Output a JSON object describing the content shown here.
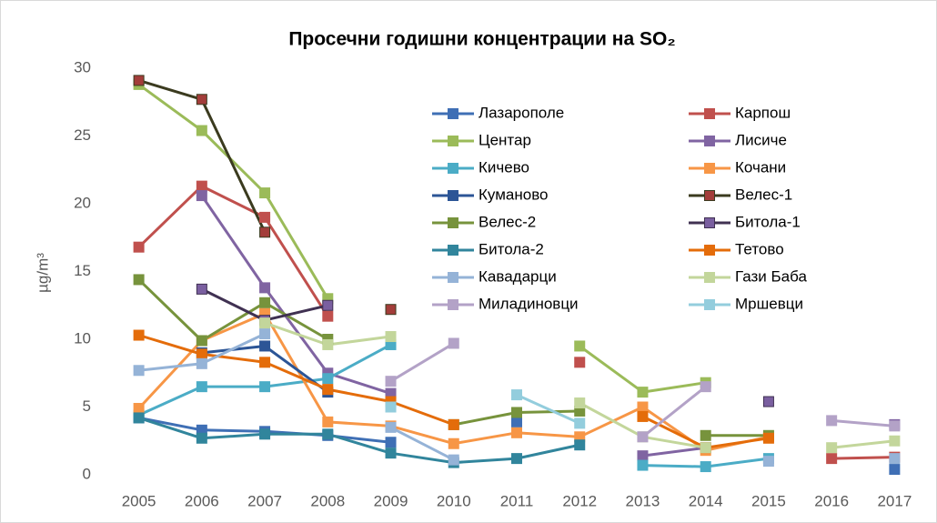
{
  "chart_data": {
    "type": "line",
    "title": "Просечни годишни концентрации на SO₂",
    "y_label": "µg/m³",
    "categories": [
      "2005",
      "2006",
      "2007",
      "2008",
      "2009",
      "2010",
      "2011",
      "2012",
      "2013",
      "2014",
      "2015",
      "2016",
      "2017"
    ],
    "ylim": [
      0,
      30
    ],
    "yticks": [
      0,
      5,
      10,
      15,
      20,
      25,
      30
    ],
    "grid": false,
    "legend": "upper right",
    "series": [
      {
        "name": "Лазарополе",
        "color": "#3f6fb5",
        "values": [
          4.2,
          3.3,
          3.2,
          2.9,
          2.4,
          null,
          3.9,
          null,
          null,
          null,
          null,
          null,
          0.4
        ]
      },
      {
        "name": "Карпош",
        "color": "#c0504d",
        "values": [
          16.8,
          21.3,
          19.0,
          11.7,
          null,
          null,
          null,
          8.3,
          null,
          null,
          null,
          1.2,
          1.3
        ]
      },
      {
        "name": "Центар",
        "color": "#9bbb59",
        "values": [
          28.8,
          25.4,
          20.8,
          13.0,
          null,
          null,
          null,
          9.5,
          6.1,
          6.8,
          null,
          null,
          null
        ]
      },
      {
        "name": "Лисиче",
        "color": "#8064a2",
        "values": [
          null,
          20.6,
          13.8,
          7.5,
          6.0,
          null,
          null,
          null,
          1.4,
          2.0,
          null,
          null,
          3.7
        ]
      },
      {
        "name": "Кичево",
        "color": "#4bacc6",
        "values": [
          4.4,
          6.5,
          6.5,
          7.1,
          9.6,
          null,
          null,
          null,
          0.7,
          0.6,
          1.2,
          null,
          null
        ]
      },
      {
        "name": "Кочани",
        "color": "#f79646",
        "values": [
          4.9,
          9.9,
          11.9,
          3.9,
          3.6,
          2.3,
          3.1,
          2.8,
          5.0,
          1.8,
          2.8,
          null,
          null
        ]
      },
      {
        "name": "Куманово",
        "color": "#2c5596",
        "values": [
          null,
          9.0,
          9.5,
          6.1,
          null,
          null,
          null,
          null,
          null,
          null,
          null,
          null,
          null
        ]
      },
      {
        "name": "Велес-1",
        "color": "#3b3b1f",
        "marker": "#a33d3a",
        "values": [
          29.1,
          27.7,
          17.9,
          null,
          12.2,
          null,
          null,
          null,
          null,
          null,
          null,
          null,
          null
        ]
      },
      {
        "name": "Велес-2",
        "color": "#77933c",
        "values": [
          14.4,
          9.9,
          12.7,
          10.0,
          null,
          3.7,
          4.6,
          4.7,
          null,
          2.9,
          2.9,
          null,
          null
        ]
      },
      {
        "name": "Битола-1",
        "color": "#403152",
        "marker": "#7a5fa0",
        "values": [
          null,
          13.7,
          11.4,
          12.5,
          null,
          null,
          null,
          null,
          null,
          null,
          5.4,
          null,
          null
        ]
      },
      {
        "name": "Битола-2",
        "color": "#31859c",
        "values": [
          4.2,
          2.7,
          3.0,
          3.0,
          1.6,
          0.9,
          1.2,
          2.2,
          null,
          null,
          null,
          null,
          null
        ]
      },
      {
        "name": "Тетово",
        "color": "#e46c0a",
        "values": [
          10.3,
          8.9,
          8.3,
          6.3,
          5.4,
          3.7,
          null,
          null,
          4.3,
          2.0,
          2.7,
          null,
          null
        ]
      },
      {
        "name": "Кавадарци",
        "color": "#95b3d7",
        "values": [
          7.7,
          8.2,
          10.4,
          null,
          3.5,
          1.1,
          null,
          null,
          null,
          null,
          1.0,
          null,
          1.2
        ]
      },
      {
        "name": "Гази Баба",
        "color": "#c3d69b",
        "values": [
          null,
          null,
          11.2,
          9.6,
          10.2,
          null,
          null,
          5.3,
          2.8,
          2.0,
          null,
          2.0,
          2.5
        ]
      },
      {
        "name": "Миладиновци",
        "color": "#b3a2c7",
        "values": [
          null,
          null,
          null,
          null,
          6.9,
          9.7,
          null,
          null,
          2.8,
          6.5,
          null,
          4.0,
          3.6
        ]
      },
      {
        "name": "Мршевци",
        "color": "#93cddd",
        "values": [
          null,
          null,
          null,
          null,
          5.0,
          null,
          5.9,
          3.8,
          null,
          null,
          null,
          null,
          null
        ]
      }
    ]
  }
}
